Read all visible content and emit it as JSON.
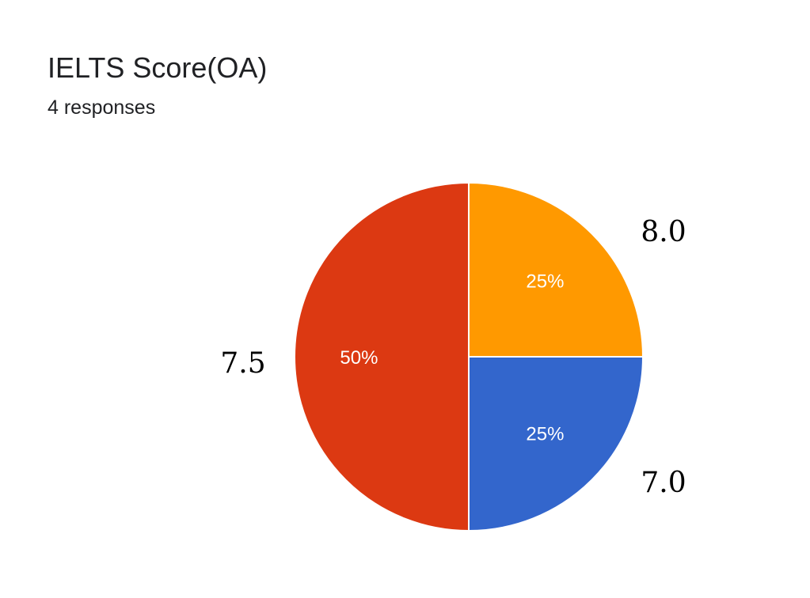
{
  "header": {
    "title": "IELTS Score(OA)",
    "responses": "4 responses"
  },
  "chart_data": {
    "type": "pie",
    "title": "IELTS Score(OA)",
    "subtitle": "4 responses",
    "slices": [
      {
        "label": "8.0",
        "value": 25,
        "percent_label": "25%",
        "color": "#ff9900"
      },
      {
        "label": "7.0",
        "value": 25,
        "percent_label": "25%",
        "color": "#3366cc"
      },
      {
        "label": "7.5",
        "value": 50,
        "percent_label": "50%",
        "color": "#dc3912"
      }
    ]
  }
}
